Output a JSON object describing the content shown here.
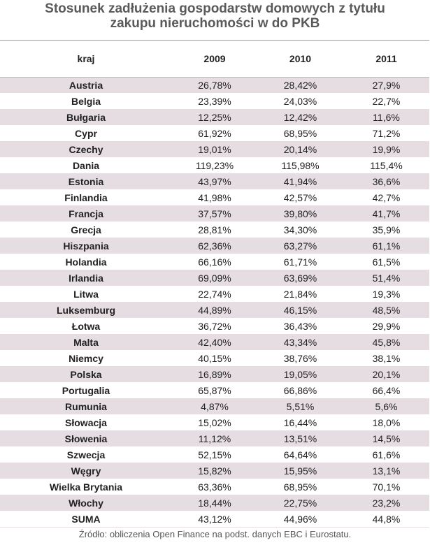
{
  "title_line1": "Stosunek zadłużenia gospodarstw domowych z tytułu",
  "title_line2": "zakupu nieruchomości w do PKB",
  "source": "Źródło: obliczenia Open Finance na podst. danych EBC i Eurostatu.",
  "colors": {
    "stripe": "#e6dde3",
    "title": "#5a5a5a"
  },
  "chart_data": {
    "type": "table",
    "title": "Stosunek zadłużenia gospodarstw domowych z tytułu zakupu nieruchomości w do PKB",
    "columns": [
      "kraj",
      "2009",
      "2010",
      "2011"
    ],
    "rows": [
      [
        "Austria",
        "26,78%",
        "28,42%",
        "27,9%"
      ],
      [
        "Belgia",
        "23,39%",
        "24,03%",
        "22,7%"
      ],
      [
        "Bułgaria",
        "12,25%",
        "12,42%",
        "11,6%"
      ],
      [
        "Cypr",
        "61,92%",
        "68,95%",
        "71,2%"
      ],
      [
        "Czechy",
        "19,01%",
        "20,14%",
        "19,9%"
      ],
      [
        "Dania",
        "119,23%",
        "115,98%",
        "115,4%"
      ],
      [
        "Estonia",
        "43,97%",
        "41,94%",
        "36,6%"
      ],
      [
        "Finlandia",
        "41,98%",
        "42,57%",
        "42,7%"
      ],
      [
        "Francja",
        "37,57%",
        "39,80%",
        "41,7%"
      ],
      [
        "Grecja",
        "28,81%",
        "34,30%",
        "35,9%"
      ],
      [
        "Hiszpania",
        "62,36%",
        "63,27%",
        "61,1%"
      ],
      [
        "Holandia",
        "66,16%",
        "61,71%",
        "61,5%"
      ],
      [
        "Irlandia",
        "69,09%",
        "63,69%",
        "51,4%"
      ],
      [
        "Litwa",
        "22,74%",
        "21,84%",
        "19,3%"
      ],
      [
        "Luksemburg",
        "44,89%",
        "46,15%",
        "48,5%"
      ],
      [
        "Łotwa",
        "36,72%",
        "36,43%",
        "29,9%"
      ],
      [
        "Malta",
        "42,40%",
        "43,34%",
        "45,8%"
      ],
      [
        "Niemcy",
        "40,15%",
        "38,76%",
        "38,1%"
      ],
      [
        "Polska",
        "16,89%",
        "19,05%",
        "20,1%"
      ],
      [
        "Portugalia",
        "65,87%",
        "66,86%",
        "66,4%"
      ],
      [
        "Rumunia",
        "4,87%",
        "5,51%",
        "5,6%"
      ],
      [
        "Słowacja",
        "15,02%",
        "16,44%",
        "18,0%"
      ],
      [
        "Słowenia",
        "11,12%",
        "13,51%",
        "14,5%"
      ],
      [
        "Szwecja",
        "52,15%",
        "64,64%",
        "61,6%"
      ],
      [
        "Węgry",
        "15,82%",
        "15,95%",
        "13,1%"
      ],
      [
        "Wielka Brytania",
        "63,36%",
        "68,95%",
        "70,1%"
      ],
      [
        "Włochy",
        "18,44%",
        "22,75%",
        "23,2%"
      ],
      [
        "SUMA",
        "43,12%",
        "44,96%",
        "44,8%"
      ]
    ]
  }
}
